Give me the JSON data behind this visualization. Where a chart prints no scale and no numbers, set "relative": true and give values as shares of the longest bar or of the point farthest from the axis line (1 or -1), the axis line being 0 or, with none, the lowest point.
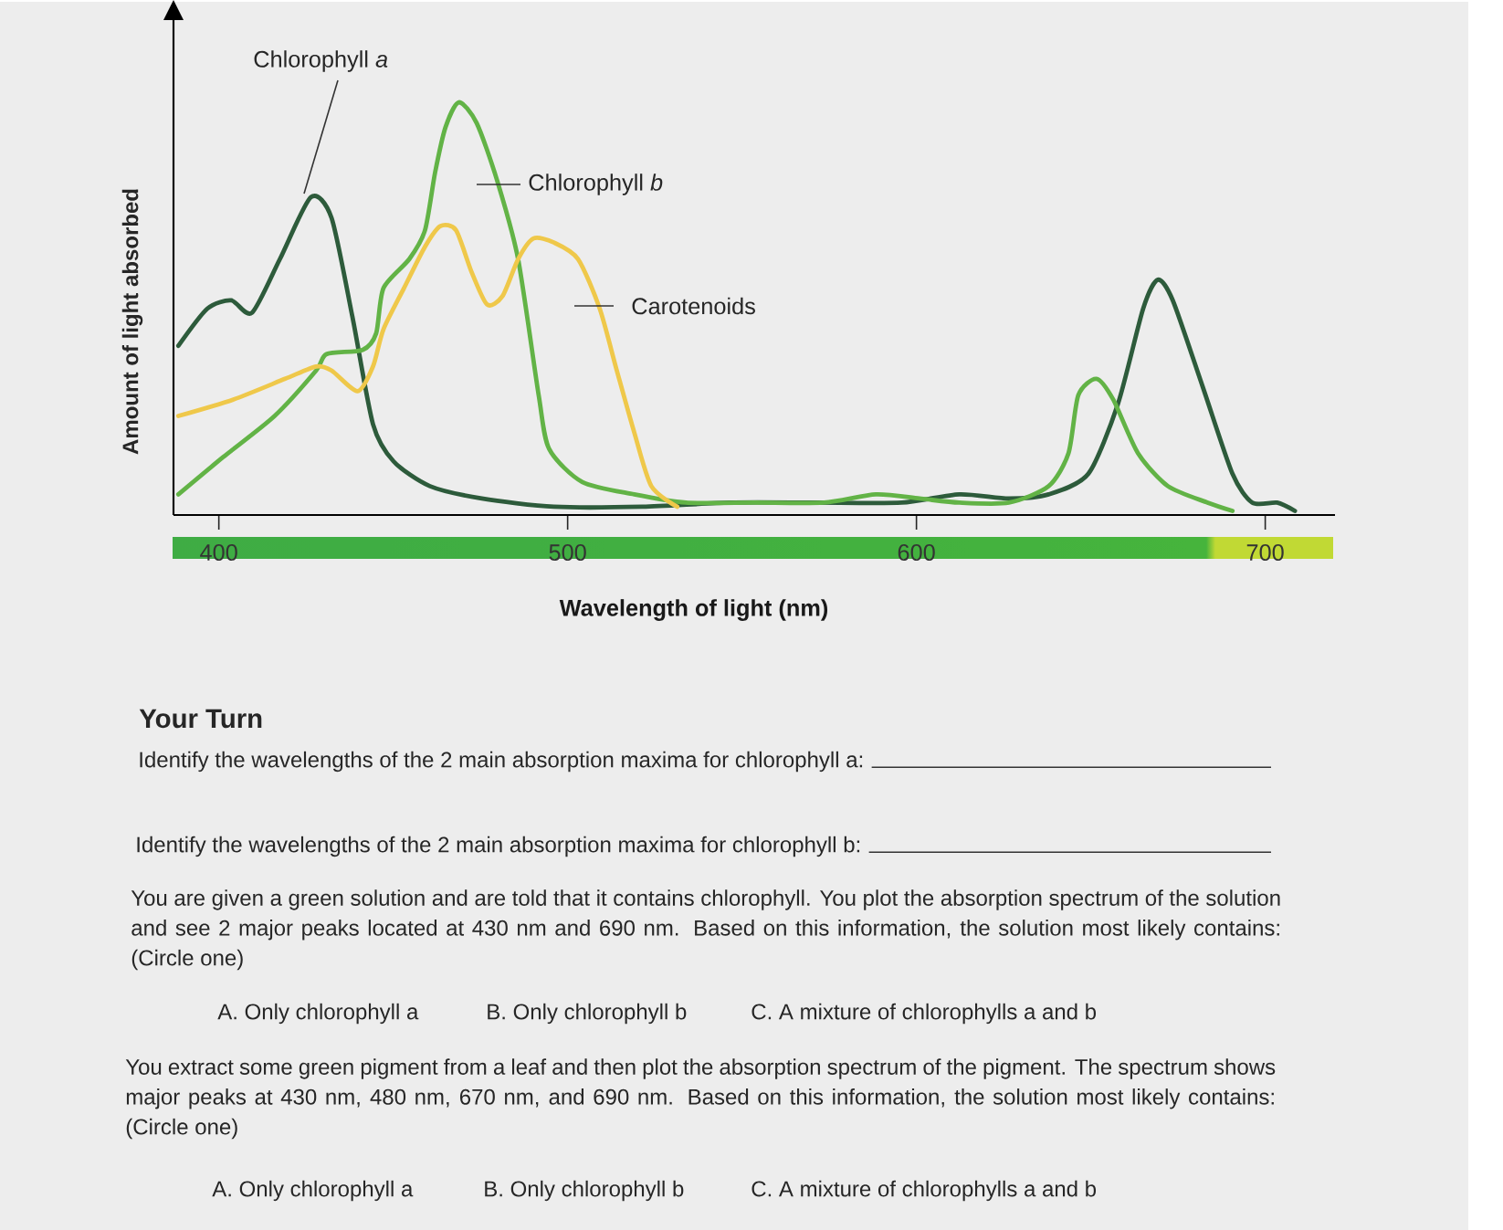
{
  "chart_data": {
    "type": "line",
    "relative": true,
    "xlabel": "Wavelength of light (nm)",
    "ylabel": "Amount of light absorbed",
    "xlim": [
      387,
      720
    ],
    "xticks": [
      400,
      500,
      600,
      700
    ],
    "series": [
      {
        "name": "Chlorophyll *a*",
        "color": "#2d5b3b",
        "x": [
          388.4,
          396.7,
          403.6,
          409.5,
          417.5,
          426.4,
          432.3,
          438.3,
          444.2,
          450.1,
          460.5,
          475.4,
          496.1,
          521.5,
          546.3,
          571.0,
          595.8,
          612.3,
          626.5,
          637.9,
          649.3,
          657.8,
          665.0,
          669.2,
          673.5,
          682.1,
          690.6,
          696.3,
          703.4,
          708.5
        ],
        "values": [
          0.41,
          0.5,
          0.52,
          0.49,
          0.62,
          0.77,
          0.72,
          0.48,
          0.22,
          0.13,
          0.07,
          0.04,
          0.02,
          0.02,
          0.03,
          0.03,
          0.03,
          0.05,
          0.04,
          0.05,
          0.1,
          0.27,
          0.5,
          0.57,
          0.52,
          0.31,
          0.1,
          0.03,
          0.03,
          0.01
        ]
      },
      {
        "name": "Chlorophyll *b*",
        "color": "#62b346",
        "x": [
          388.4,
          401.2,
          416.0,
          427.9,
          430.9,
          441.2,
          445.1,
          447.2,
          454.6,
          459.1,
          462.0,
          465.0,
          468.8,
          473.9,
          479.8,
          485.8,
          491.7,
          494.7,
          504.2,
          519.1,
          533.9,
          553.7,
          573.5,
          588.4,
          600.9,
          612.3,
          626.5,
          637.9,
          643.6,
          646.4,
          651.6,
          656.4,
          663.5,
          672.1,
          683.5,
          690.6
        ],
        "values": [
          0.05,
          0.14,
          0.24,
          0.35,
          0.39,
          0.4,
          0.44,
          0.55,
          0.62,
          0.69,
          0.83,
          0.94,
          1.0,
          0.95,
          0.81,
          0.62,
          0.29,
          0.16,
          0.08,
          0.05,
          0.03,
          0.03,
          0.03,
          0.05,
          0.04,
          0.03,
          0.03,
          0.07,
          0.15,
          0.29,
          0.33,
          0.28,
          0.15,
          0.07,
          0.03,
          0.01
        ]
      },
      {
        "name": "Carotenoids",
        "color": "#efc84a",
        "x": [
          388.4,
          404.2,
          419.0,
          427.9,
          432.3,
          439.8,
          444.2,
          447.2,
          453.1,
          459.1,
          463.5,
          468.0,
          472.4,
          476.9,
          481.3,
          485.8,
          490.2,
          496.1,
          503.0,
          509.2,
          514.1,
          519.1,
          524.0,
          531.4
        ],
        "values": [
          0.24,
          0.28,
          0.33,
          0.36,
          0.35,
          0.3,
          0.36,
          0.45,
          0.55,
          0.65,
          0.7,
          0.69,
          0.59,
          0.51,
          0.53,
          0.62,
          0.67,
          0.66,
          0.62,
          0.5,
          0.35,
          0.2,
          0.07,
          0.02
        ]
      }
    ],
    "annotations": [
      "Your Turn",
      "Identify the wavelengths of the 2 main absorption maxima for chlorophyll a:",
      "Identify the wavelengths of the 2 main absorption maxima for chlorophyll b:",
      "You are given a green solution and are told that it contains chlorophyll. You plot the absorption spectrum of the solution and see 2 major peaks located at 430 nm and 690 nm. Based on this information, the solution most likely contains: (Circle one)",
      "A. Only chlorophyll a",
      "B. Only chlorophyll b",
      "C. A mixture of chlorophylls a and b",
      "You extract some green pigment from a leaf and then plot the absorption spectrum of the pigment. The spectrum shows major peaks at 430 nm, 480 nm, 670 nm, and 690 nm. Based on this information, the solution most likely contains: (Circle one)",
      "A. Only chlorophyll a",
      "B. Only chlorophyll b",
      "C.  A mixture of chlorophylls a and b"
    ]
  }
}
